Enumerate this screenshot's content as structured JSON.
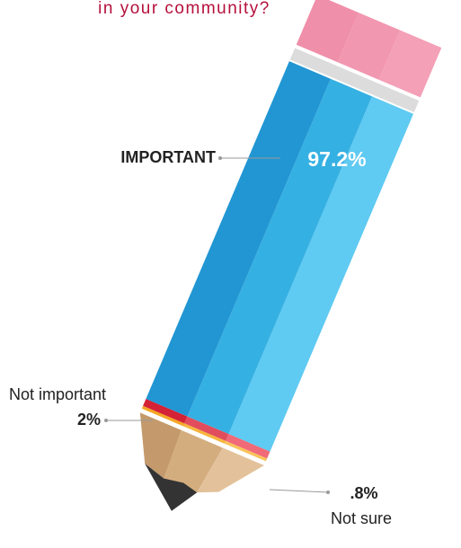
{
  "chart_data": {
    "type": "pencil",
    "title": "in your community?",
    "categories": [
      "IMPORTANT",
      "Not important",
      "Not sure"
    ],
    "values": [
      97.2,
      2,
      0.8
    ],
    "value_labels": [
      "97.2%",
      "2%",
      ".8%"
    ],
    "colors": [
      [
        "#2196d3",
        "#35b0e2",
        "#5fcaf2"
      ],
      [
        "#d42236",
        "#e14d5c",
        "#f06a78"
      ],
      [
        "#f5a623",
        "#f7b53d",
        "#f9c35a"
      ]
    ]
  }
}
